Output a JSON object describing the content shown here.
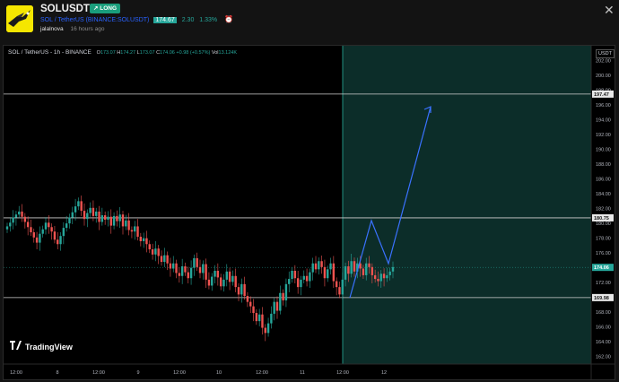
{
  "header": {
    "symbol": "SOLUSDT",
    "badge": "↗ LONG",
    "pair_name": "SOL / TetherUS",
    "exchange": "(BINANCE:SOLUSDT)",
    "price": "174.67",
    "change": "2.30",
    "change_pct": "1.33%",
    "author": "jalalnova",
    "time_ago": "16 hours ago"
  },
  "chart_title": "SOL / TetherUS - 1h - BINANCE",
  "ohlc": {
    "o_label": "O",
    "o": "173.07",
    "h_label": "H",
    "h": "174.27",
    "l_label": "L",
    "l": "173.07",
    "c_label": "C",
    "c": "174.06",
    "change": "+0.98 (+0.57%)",
    "vol_label": "Vol",
    "vol": "13.124K"
  },
  "currency": "USDT",
  "watermark": "TradingView",
  "price_axis": {
    "ticks": [
      "202.00",
      "200.00",
      "198.00",
      "196.00",
      "194.00",
      "192.00",
      "190.00",
      "188.00",
      "186.00",
      "184.00",
      "182.00",
      "180.00",
      "178.00",
      "176.00",
      "174.00",
      "172.00",
      "170.00",
      "168.00",
      "166.00",
      "164.00",
      "162.00"
    ],
    "levels": [
      {
        "label": "197.47",
        "value": 197.47
      },
      {
        "label": "180.75",
        "value": 180.75
      },
      {
        "label": "174.06",
        "value": 174.06,
        "accent": "#26a69a"
      },
      {
        "label": "169.98",
        "value": 169.98
      }
    ]
  },
  "time_axis": [
    "12:00",
    "8",
    "12:00",
    "9",
    "12:00",
    "10",
    "12:00",
    "11",
    "12:00",
    "12"
  ],
  "colors": {
    "up": "#26a69a",
    "down": "#ef5350",
    "projection": "#2962ff",
    "zone": "#0c2d29"
  },
  "chart_data": {
    "type": "candlestick",
    "ylim": [
      161,
      204
    ],
    "candles_close": [
      179.6,
      180.1,
      180.8,
      181.2,
      181.6,
      180.9,
      180.2,
      179.5,
      178.8,
      178.1,
      177.4,
      178.6,
      179.2,
      180.1,
      179.5,
      178.9,
      177.8,
      177.2,
      178.3,
      179.4,
      180.0,
      180.8,
      181.5,
      182.3,
      183.0,
      181.7,
      180.6,
      181.4,
      182.1,
      181.0,
      181.6,
      180.2,
      181.1,
      180.5,
      180.9,
      179.7,
      181.0,
      180.3,
      181.2,
      179.6,
      180.4,
      179.1,
      178.9,
      179.6,
      178.2,
      177.6,
      178.0,
      177.2,
      176.5,
      175.8,
      176.6,
      175.6,
      174.8,
      175.7,
      174.6,
      173.9,
      174.6,
      173.3,
      172.9,
      174.2,
      173.4,
      172.6,
      174.0,
      175.3,
      174.1,
      173.3,
      174.5,
      172.4,
      171.6,
      172.8,
      173.6,
      172.7,
      171.5,
      172.4,
      173.5,
      172.1,
      172.9,
      171.4,
      170.4,
      171.8,
      170.2,
      169.4,
      168.8,
      167.9,
      166.8,
      167.7,
      165.9,
      165.2,
      166.5,
      167.8,
      169.4,
      168.2,
      170.6,
      169.6,
      171.8,
      172.5,
      173.6,
      172.6,
      171.4,
      172.4,
      172.9,
      172.2,
      173.4,
      174.6,
      173.8,
      174.9,
      174.1,
      172.6,
      173.8,
      174.6,
      172.2,
      171.4,
      170.4,
      172.4,
      174.2,
      173.2,
      174.9,
      173.5,
      174.6,
      173.9,
      173.0,
      174.6,
      174.1,
      173.0,
      172.5,
      172.2,
      173.2,
      172.6,
      173.0,
      173.5,
      174.1
    ]
  }
}
